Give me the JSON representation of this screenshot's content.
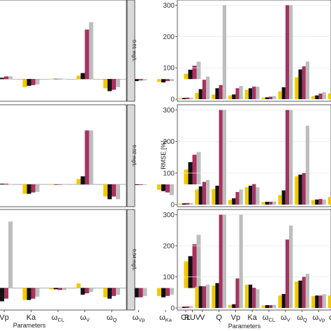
{
  "figure": {
    "left_xlabel": "Parameters",
    "right_xlabel": "Parameters",
    "right_ylabel": "RMSE [%]"
  },
  "colors": {
    "series": [
      "#F3C800",
      "#111111",
      "#A8315F",
      "#BDBDBD"
    ]
  },
  "chart_data": [
    {
      "type": "bar",
      "panel": "left",
      "row": 0,
      "strip": "0.01 mg/L",
      "categories": [
        "Vp",
        "Ka",
        "ωCL",
        "ωV",
        "ωQ",
        "ωVp",
        "ωKa",
        "RUV"
      ],
      "xtick_labels": [
        {
          "base": "Vp",
          "sub": ""
        },
        {
          "base": "Ka",
          "sub": ""
        },
        {
          "base": "ω",
          "sub": "CL"
        },
        {
          "base": "ω",
          "sub": "V"
        },
        {
          "base": "ω",
          "sub": "Q"
        },
        {
          "base": "ω",
          "sub": "Vp"
        },
        {
          "base": "ω",
          "sub": "Ka"
        },
        {
          "base": "RUV",
          "sub": ""
        }
      ],
      "ylim": [
        -30,
        115
      ],
      "yticks": [],
      "series": [
        {
          "values": [
            3,
            -12,
            0.5,
            5,
            -14,
            -2,
            -4,
            8
          ]
        },
        {
          "values": [
            2,
            -10,
            0.5,
            9,
            -18,
            -3,
            -5,
            14
          ]
        },
        {
          "values": [
            4,
            -9,
            0.5,
            74,
            -16,
            -2,
            -3,
            20
          ]
        },
        {
          "values": [
            4,
            -8,
            0.5,
            85,
            -12,
            -2,
            -3,
            26
          ]
        }
      ]
    },
    {
      "type": "bar",
      "panel": "left",
      "row": 1,
      "strip": "0.02 mg/L",
      "categories": [
        "Vp",
        "Ka",
        "ωCL",
        "ωV",
        "ωQ",
        "ωVp",
        "ωKa",
        "RUV"
      ],
      "xtick_labels": [
        {
          "base": "Vp",
          "sub": ""
        },
        {
          "base": "Ka",
          "sub": ""
        },
        {
          "base": "ω",
          "sub": "CL"
        },
        {
          "base": "ω",
          "sub": "V"
        },
        {
          "base": "ω",
          "sub": "Q"
        },
        {
          "base": "ω",
          "sub": "Vp"
        },
        {
          "base": "ω",
          "sub": "Ka"
        },
        {
          "base": "RUV",
          "sub": ""
        }
      ],
      "ylim": [
        -30,
        115
      ],
      "yticks": [],
      "series": [
        {
          "values": [
            1,
            -14,
            -0.5,
            8,
            -18,
            -1,
            -8,
            22
          ]
        },
        {
          "values": [
            1,
            -14,
            -0.5,
            12,
            -22,
            -1,
            -10,
            33
          ]
        },
        {
          "values": [
            1,
            -12,
            -0.5,
            80,
            -18,
            -1,
            -12,
            44
          ]
        },
        {
          "values": [
            0.5,
            -11,
            -0.5,
            80,
            -22,
            -1,
            -16,
            48
          ]
        }
      ]
    },
    {
      "type": "bar",
      "panel": "left",
      "row": 2,
      "strip": "0.04 mg/L",
      "categories": [
        "Vp",
        "Ka",
        "ωCL",
        "ωV",
        "ωQ",
        "ωVp",
        "ωKa",
        "RUV"
      ],
      "xtick_labels": [
        {
          "base": "Vp",
          "sub": ""
        },
        {
          "base": "Ka",
          "sub": ""
        },
        {
          "base": "ω",
          "sub": "CL"
        },
        {
          "base": "ω",
          "sub": "V"
        },
        {
          "base": "ω",
          "sub": "Q"
        },
        {
          "base": "ω",
          "sub": "Vp"
        },
        {
          "base": "ω",
          "sub": "Ka"
        },
        {
          "base": "RUV",
          "sub": ""
        }
      ],
      "ylim": [
        -30,
        115
      ],
      "yticks": [],
      "series": [
        {
          "values": [
            -20,
            -18,
            -2,
            7,
            -14,
            -12,
            -12,
            40
          ]
        },
        {
          "values": [
            -20,
            -18,
            -2,
            -10,
            -16,
            -14,
            -14,
            48
          ]
        },
        {
          "values": [
            -16,
            -16,
            -3,
            -8,
            -12,
            -14,
            -12,
            66
          ]
        },
        {
          "values": [
            100,
            -13,
            -3,
            -6,
            -10,
            -12,
            -10,
            80
          ]
        }
      ]
    },
    {
      "type": "bar",
      "panel": "right",
      "row": 0,
      "categories": [
        "CL",
        "V",
        "Q",
        "Vp",
        "Ka",
        "ωCL",
        "ωV",
        "ωQ",
        "ωVp",
        "ωKa"
      ],
      "xtick_labels": [
        {
          "base": "CL",
          "sub": ""
        },
        {
          "base": "V",
          "sub": ""
        },
        {
          "base": "Q",
          "sub": ""
        },
        {
          "base": "Vp",
          "sub": ""
        },
        {
          "base": "Ka",
          "sub": ""
        },
        {
          "base": "ω",
          "sub": "CL"
        },
        {
          "base": "ω",
          "sub": "V"
        },
        {
          "base": "ω",
          "sub": "Q"
        },
        {
          "base": "ω",
          "sub": "Vp"
        },
        {
          "base": "ω",
          "sub": "Ka"
        }
      ],
      "ylim": [
        0,
        310
      ],
      "yticks": [
        0,
        100,
        200,
        300
      ],
      "series": [
        {
          "values": [
            3,
            20,
            15,
            12,
            30,
            5,
            25,
            70,
            10,
            18
          ]
        },
        {
          "values": [
            4,
            32,
            35,
            15,
            35,
            6,
            38,
            95,
            12,
            22
          ]
        },
        {
          "values": [
            5,
            62,
            45,
            35,
            40,
            8,
            300,
            105,
            18,
            30
          ]
        },
        {
          "values": [
            5,
            72,
            300,
            42,
            40,
            10,
            300,
            120,
            22,
            28
          ]
        }
      ]
    },
    {
      "type": "bar",
      "panel": "right",
      "row": 1,
      "categories": [
        "CL",
        "V",
        "Q",
        "Vp",
        "Ka",
        "ωCL",
        "ωV",
        "ωQ",
        "ωVp",
        "ωKa"
      ],
      "xtick_labels": [
        {
          "base": "CL",
          "sub": ""
        },
        {
          "base": "V",
          "sub": ""
        },
        {
          "base": "Q",
          "sub": ""
        },
        {
          "base": "Vp",
          "sub": ""
        },
        {
          "base": "Ka",
          "sub": ""
        },
        {
          "base": "ω",
          "sub": "CL"
        },
        {
          "base": "ω",
          "sub": "V"
        },
        {
          "base": "ω",
          "sub": "Q"
        },
        {
          "base": "ω",
          "sub": "Vp"
        },
        {
          "base": "ω",
          "sub": "Ka"
        }
      ],
      "ylim": [
        0,
        310
      ],
      "yticks": [
        0,
        100,
        200,
        300
      ],
      "series": [
        {
          "values": [
            3,
            48,
            50,
            15,
            55,
            8,
            30,
            90,
            14,
            24
          ]
        },
        {
          "values": [
            4,
            58,
            60,
            20,
            60,
            9,
            45,
            95,
            16,
            28
          ]
        },
        {
          "values": [
            5,
            72,
            300,
            40,
            65,
            9,
            300,
            100,
            18,
            60
          ]
        },
        {
          "values": [
            5,
            78,
            300,
            48,
            55,
            10,
            300,
            250,
            16,
            30
          ]
        }
      ]
    },
    {
      "type": "bar",
      "panel": "right",
      "row": 2,
      "categories": [
        "CL",
        "V",
        "Q",
        "Vp",
        "Ka",
        "ωCL",
        "ωV",
        "ωQ",
        "ωVp",
        "ωKa"
      ],
      "xtick_labels": [
        {
          "base": "CL",
          "sub": ""
        },
        {
          "base": "V",
          "sub": ""
        },
        {
          "base": "Q",
          "sub": ""
        },
        {
          "base": "Vp",
          "sub": ""
        },
        {
          "base": "Ka",
          "sub": ""
        },
        {
          "base": "ω",
          "sub": "CL"
        },
        {
          "base": "ω",
          "sub": "V"
        },
        {
          "base": "ω",
          "sub": "Q"
        },
        {
          "base": "ω",
          "sub": "Vp"
        },
        {
          "base": "ω",
          "sub": "Ka"
        }
      ],
      "ylim": [
        0,
        310
      ],
      "yticks": [
        0,
        100,
        200,
        300
      ],
      "series": [
        {
          "values": [
            3,
            68,
            72,
            10,
            75,
            8,
            40,
            85,
            38,
            40
          ]
        },
        {
          "values": [
            4,
            70,
            80,
            12,
            75,
            9,
            45,
            88,
            40,
            42
          ]
        },
        {
          "values": [
            5,
            70,
            300,
            95,
            65,
            9,
            220,
            100,
            40,
            95
          ]
        },
        {
          "values": [
            6,
            75,
            300,
            300,
            60,
            10,
            265,
            110,
            44,
            50
          ]
        }
      ]
    }
  ]
}
